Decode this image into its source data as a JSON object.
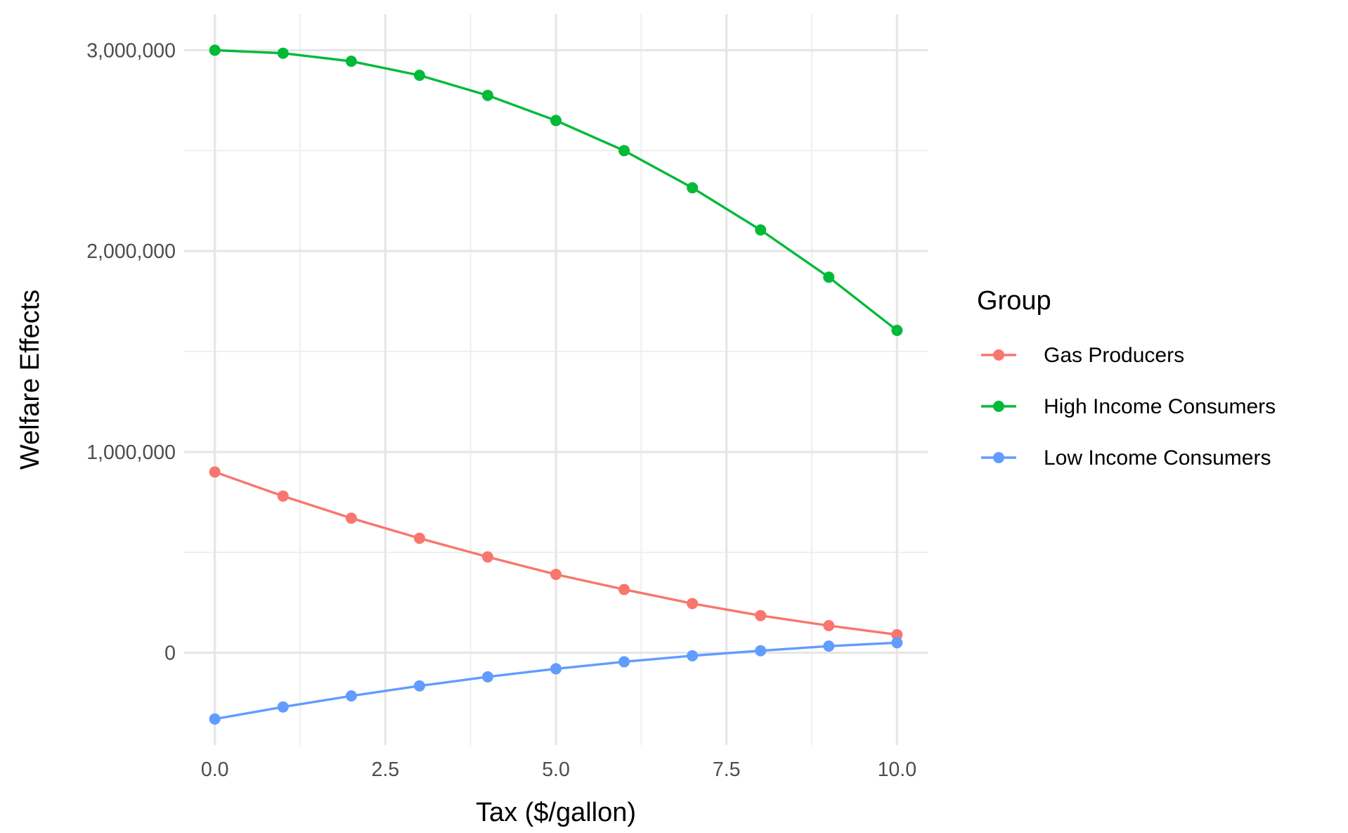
{
  "chart_data": {
    "type": "line",
    "title": "",
    "xlabel": "Tax ($/gallon)",
    "ylabel": "Welfare Effects",
    "xlim": [
      -0.45,
      10.45
    ],
    "ylim": [
      -460000,
      3180000
    ],
    "x_ticks": [
      0,
      2.5,
      5,
      7.5,
      10
    ],
    "x_tick_labels": [
      "0.0",
      "2.5",
      "5.0",
      "7.5",
      "10.0"
    ],
    "y_ticks": [
      0,
      1000000,
      2000000,
      3000000
    ],
    "y_tick_labels": [
      "0",
      "1,000,000",
      "2,000,000",
      "3,000,000"
    ],
    "x_minor_ticks": [
      1.25,
      3.75,
      6.25,
      8.75
    ],
    "y_minor_ticks": [
      500000,
      1500000,
      2500000
    ],
    "grid": true,
    "legend": {
      "title": "Group",
      "position": "right"
    },
    "x": [
      0,
      1,
      2,
      3,
      4,
      5,
      6,
      7,
      8,
      9,
      10
    ],
    "series": [
      {
        "name": "Gas Producers",
        "color": "#F8766D",
        "values": [
          900000,
          780000,
          670000,
          570000,
          477000,
          390000,
          315000,
          245000,
          185000,
          135000,
          90000
        ]
      },
      {
        "name": "High Income Consumers",
        "color": "#00BA38",
        "values": [
          3000000,
          2985000,
          2945000,
          2875000,
          2775000,
          2650000,
          2500000,
          2315000,
          2105000,
          1870000,
          1605000
        ]
      },
      {
        "name": "Low Income Consumers",
        "color": "#619CFF",
        "values": [
          -330000,
          -270000,
          -215000,
          -165000,
          -120000,
          -80000,
          -45000,
          -15000,
          10000,
          33000,
          50000
        ]
      }
    ]
  }
}
